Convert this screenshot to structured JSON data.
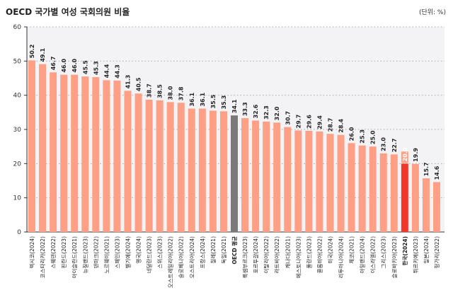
{
  "chart_data": {
    "type": "bar",
    "title": "OECD 국가별 여성 국회의원 비율",
    "unit": "(단위: %)",
    "ylim": [
      0,
      60
    ],
    "yticks": [
      0,
      10,
      20,
      30,
      40,
      50,
      60
    ],
    "grid": true,
    "categories": [
      "멕시코(2024)",
      "코스타리카(2022)",
      "스웨덴(2022)",
      "핀란드(2023)",
      "아이슬란드(2021)",
      "뉴질랜드(2023)",
      "덴마크(2022)",
      "노르웨이(2021)",
      "스페인(2023)",
      "벨기에(2024)",
      "영국(2024)",
      "네덜란드(2023)",
      "스위스(2023)",
      "오스트레일리아(2022)",
      "슬로베니아(2022)",
      "오스트리아(2024)",
      "프랑스(2024)",
      "칠레(2021)",
      "독일(2021)",
      "OECD 평균",
      "룩셈부르크(2023)",
      "포르투갈(2024)",
      "이탈리아(2022)",
      "라트비아(2022)",
      "캐나다(2021)",
      "에스토니아(2023)",
      "폴란드(2023)",
      "콜롬비아(2022)",
      "미국(2024)",
      "리투아니아(2024)",
      "체코(2021)",
      "아일랜드(2024)",
      "이스라엘(2022)",
      "그리스(2023)",
      "슬로바키아(2023)",
      "한국(2024)",
      "튀르키예(2023)",
      "일본(2024)",
      "헝가리(2022)"
    ],
    "values": [
      50.2,
      49.1,
      46.7,
      46.0,
      46.0,
      45.5,
      45.3,
      44.4,
      44.3,
      41.3,
      40.5,
      38.7,
      38.5,
      38.0,
      37.8,
      36.1,
      36.1,
      35.5,
      35.3,
      34.1,
      33.3,
      32.6,
      32.3,
      32.0,
      30.7,
      29.7,
      29.6,
      29.4,
      28.7,
      28.4,
      26.0,
      25.3,
      25.0,
      23.0,
      22.7,
      20.0,
      19.9,
      15.7,
      14.6
    ],
    "highlights": {
      "OECD 평균": "#7a7a7a",
      "한국(2024)": "#f0372a"
    },
    "colors": {
      "default": "#ff9f85",
      "oecd": "#7a7a7a",
      "korea": "#f0372a",
      "plot_bg": "#f3f3f6"
    }
  }
}
